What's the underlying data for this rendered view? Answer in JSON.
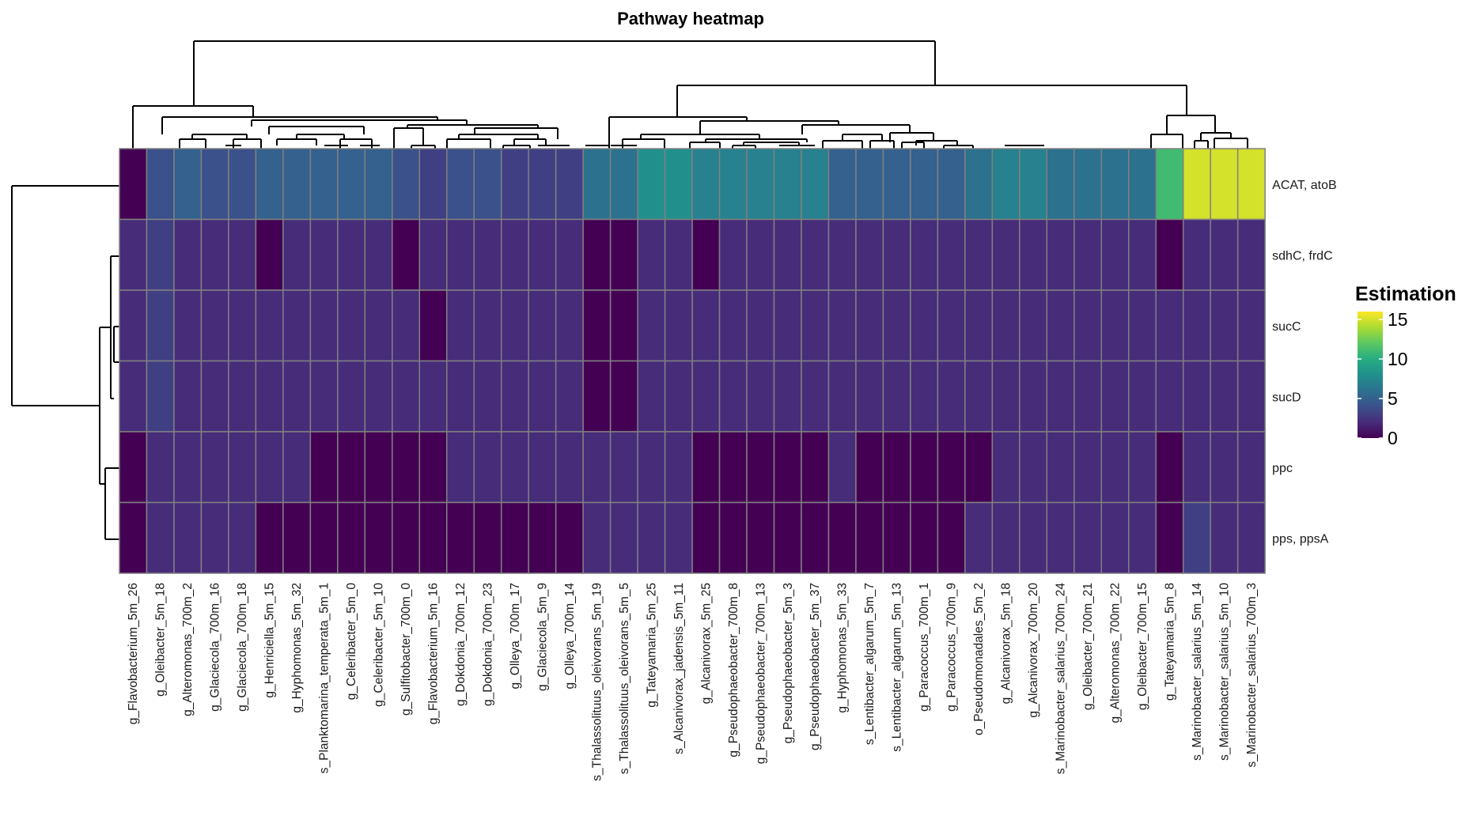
{
  "chart_data": {
    "type": "heatmap",
    "title": "Pathway heatmap",
    "rows": [
      "ACAT, atoB",
      "sdhC, frdC",
      "sucC",
      "sucD",
      "ppc",
      "pps, ppsA"
    ],
    "columns": [
      "g_Flavobacterium_5m_26",
      "g_Oleibacter_5m_18",
      "g_Alteromonas_700m_2",
      "g_Glaciecola_700m_16",
      "g_Glaciecola_700m_18",
      "g_Henriciella_5m_15",
      "g_Hyphomonas_5m_32",
      "s_Planktomarina_temperata_5m_1",
      "g_Celeribacter_5m_0",
      "g_Celeribacter_5m_10",
      "g_Sulfitobacter_700m_0",
      "g_Flavobacterium_5m_16",
      "g_Dokdonia_700m_12",
      "g_Dokdonia_700m_23",
      "g_Olleya_700m_17",
      "g_Glaciecola_5m_9",
      "g_Olleya_700m_14",
      "s_Thalassolituus_oleivorans_5m_19",
      "s_Thalassolituus_oleivorans_5m_5",
      "g_Tateyamaria_5m_25",
      "s_Alcanivorax_jadensis_5m_11",
      "g_Alcanivorax_5m_25",
      "g_Pseudophaeobacter_700m_8",
      "g_Pseudophaeobacter_700m_13",
      "g_Pseudophaeobacter_5m_3",
      "g_Pseudophaeobacter_5m_37",
      "g_Hyphomonas_5m_33",
      "s_Lentibacter_algarum_5m_7",
      "s_Lentibacter_algarum_5m_13",
      "g_Paracoccus_700m_1",
      "g_Paracoccus_700m_9",
      "o_Pseudomonadales_5m_2",
      "g_Alcanivorax_5m_18",
      "g_Alcanivorax_700m_20",
      "s_Marinobacter_salarius_700m_24",
      "g_Oleibacter_700m_21",
      "g_Alteromonas_700m_22",
      "g_Oleibacter_700m_15",
      "g_Tateyamaria_5m_8",
      "s_Marinobacter_salarius_5m_14",
      "s_Marinobacter_salarius_5m_10",
      "s_Marinobacter_salarius_700m_3"
    ],
    "values": [
      [
        0,
        4,
        5,
        4,
        4,
        5,
        5,
        5,
        5,
        5,
        4,
        3,
        4,
        4,
        3,
        3,
        3,
        6,
        6,
        8,
        8,
        7,
        7,
        7,
        7,
        7,
        5,
        5,
        5,
        5,
        5,
        6,
        7,
        7,
        6,
        6,
        6,
        6,
        11,
        15,
        15,
        15
      ],
      [
        2,
        3,
        2,
        2,
        2,
        0,
        2,
        2,
        2,
        2,
        0,
        2,
        2,
        2,
        2,
        2,
        2,
        0,
        0,
        2,
        2,
        0,
        2,
        2,
        2,
        2,
        2,
        2,
        2,
        2,
        2,
        2,
        2,
        2,
        2,
        2,
        2,
        2,
        0,
        2,
        2,
        2
      ],
      [
        2,
        3,
        2,
        2,
        2,
        2,
        2,
        2,
        2,
        2,
        2,
        0,
        2,
        2,
        2,
        2,
        2,
        0,
        0,
        2,
        2,
        2,
        2,
        2,
        2,
        2,
        2,
        2,
        2,
        2,
        2,
        2,
        2,
        2,
        2,
        2,
        2,
        2,
        2,
        2,
        2,
        2
      ],
      [
        2,
        3,
        2,
        2,
        2,
        2,
        2,
        2,
        2,
        2,
        2,
        2,
        2,
        2,
        2,
        2,
        2,
        0,
        0,
        2,
        2,
        2,
        2,
        2,
        2,
        2,
        2,
        2,
        2,
        2,
        2,
        2,
        2,
        2,
        2,
        2,
        2,
        2,
        2,
        2,
        2,
        2
      ],
      [
        0,
        2,
        2,
        2,
        2,
        2,
        2,
        0,
        0,
        0,
        0,
        0,
        2,
        2,
        2,
        2,
        2,
        2,
        2,
        2,
        2,
        0,
        0,
        0,
        0,
        0,
        2,
        0,
        0,
        0,
        0,
        0,
        2,
        2,
        2,
        2,
        2,
        2,
        0,
        2,
        2,
        2
      ],
      [
        0,
        2,
        2,
        2,
        2,
        0,
        0,
        0,
        0,
        0,
        0,
        0,
        0,
        0,
        0,
        0,
        0,
        2,
        2,
        2,
        2,
        0,
        0,
        0,
        0,
        0,
        0,
        0,
        0,
        0,
        0,
        2,
        2,
        2,
        2,
        2,
        2,
        2,
        0,
        3,
        2,
        2
      ]
    ],
    "legend": {
      "title": "Estimation",
      "ticks": [
        "0",
        "5",
        "10",
        "15"
      ],
      "range": [
        0,
        16
      ],
      "colormap": "viridis",
      "placement": "right"
    },
    "col_order": [
      0,
      1,
      2,
      3,
      4,
      5,
      6,
      7,
      8,
      9,
      10,
      11,
      12,
      13,
      14,
      15,
      16,
      17,
      18,
      19,
      20,
      21,
      22,
      23,
      24,
      25,
      26,
      27,
      28,
      29,
      30,
      31,
      32,
      33,
      34,
      35,
      36,
      37,
      38,
      39,
      40,
      41
    ],
    "row_dendrogram": "left",
    "col_dendrogram": "top"
  }
}
